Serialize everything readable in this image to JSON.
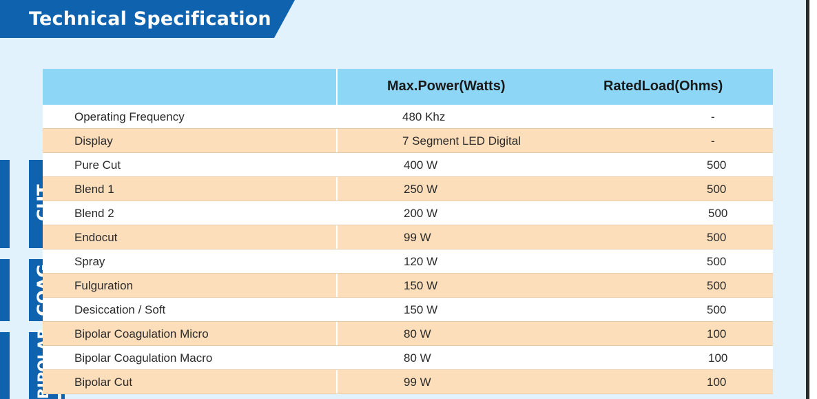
{
  "banner": {
    "title": "Technical Specification"
  },
  "table": {
    "headers": [
      "",
      "Max.Power(Watts)",
      "RatedLoad(Ohms)"
    ],
    "rows": [
      {
        "label": "Operating Frequency",
        "power": "480 Khz",
        "load": "-"
      },
      {
        "label": "Display",
        "power": "7 Segment LED Digital",
        "load": "-"
      },
      {
        "label": "Pure Cut",
        "power": "400 W",
        "load": "500"
      },
      {
        "label": "Blend 1",
        "power": "250 W",
        "load": "500"
      },
      {
        "label": "Blend 2",
        "power": "200 W",
        "load": "500"
      },
      {
        "label": "Endocut",
        "power": "99 W",
        "load": "500"
      },
      {
        "label": "Spray",
        "power": "120 W",
        "load": "500"
      },
      {
        "label": "Fulguration",
        "power": "150 W",
        "load": "500"
      },
      {
        "label": "Desiccation / Soft",
        "power": "150 W",
        "load": "500"
      },
      {
        "label": "Bipolar Coagulation Micro",
        "power": "80 W",
        "load": "100"
      },
      {
        "label": "Bipolar Coagulation Macro",
        "power": "80 W",
        "load": "100"
      },
      {
        "label": "Bipolar Cut",
        "power": "99 W",
        "load": "100"
      }
    ]
  },
  "groups": {
    "cut": "CUT",
    "coag": "COAG",
    "bipolar": "BIPOLAR"
  },
  "colors": {
    "accent_blue": "#0f62ad",
    "header_blue": "#8ed6f6",
    "row_peach": "#fcdebb",
    "background": "#e2f2fc"
  }
}
